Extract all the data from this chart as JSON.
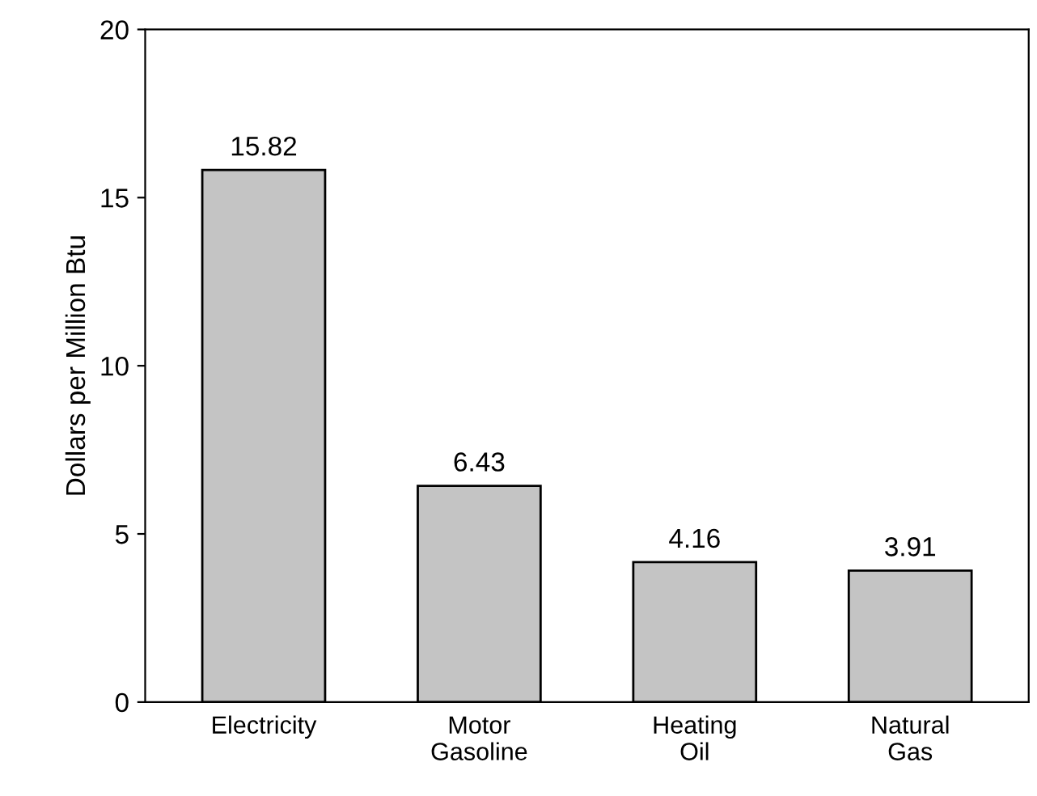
{
  "chart_data": {
    "type": "bar",
    "ylabel": "Dollars per Million Btu",
    "categories": [
      "Electricity",
      "Motor\nGasoline",
      "Heating\nOil",
      "Natural\nGas"
    ],
    "values": [
      15.82,
      6.43,
      4.16,
      3.91
    ],
    "color": "#c4c4c4",
    "ylim": [
      0,
      20
    ],
    "yticks": [
      0,
      5,
      10,
      15,
      20
    ],
    "grid": false,
    "data_labels": true
  }
}
